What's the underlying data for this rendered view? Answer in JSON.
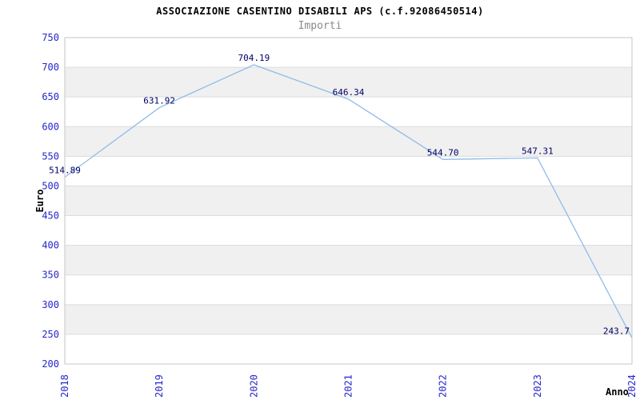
{
  "chart_data": {
    "type": "line",
    "title": "ASSOCIAZIONE CASENTINO DISABILI APS (c.f.92086450514)",
    "subtitle": "Importi",
    "xlabel": "Anno",
    "ylabel": "Euro",
    "categories": [
      "2018",
      "2019",
      "2020",
      "2021",
      "2022",
      "2023",
      "2024"
    ],
    "values": [
      514.89,
      631.92,
      704.19,
      646.34,
      544.7,
      547.31,
      243.7
    ],
    "point_labels": [
      "514.89",
      "631.92",
      "704.19",
      "646.34",
      "544.70",
      "547.31",
      "243.7"
    ],
    "ylim": [
      200,
      750
    ],
    "ytick_step": 50,
    "grid": true,
    "legend": "none",
    "colors": {
      "line": "#8fbce8",
      "tick_label": "#2525cc",
      "point_label": "#000066",
      "band_white": "#ffffff",
      "band_alt": "#f0f0f0",
      "gridline": "#dcdcdc",
      "plot_border": "#c6c6c6",
      "title": "#000000",
      "subtitle": "#8a8a8a",
      "axis_title": "#000000"
    }
  }
}
